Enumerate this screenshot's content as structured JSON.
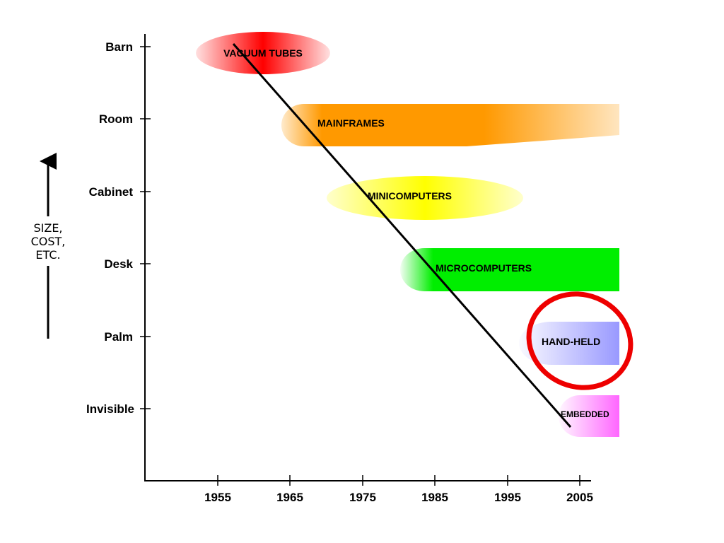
{
  "y_axis": {
    "categories": [
      "Barn",
      "Room",
      "Cabinet",
      "Desk",
      "Palm",
      "Invisible"
    ],
    "note_lines": [
      "SIZE,",
      "COST,",
      "ETC."
    ]
  },
  "x_axis": {
    "ticks": [
      "1955",
      "1965",
      "1975",
      "1985",
      "1995",
      "2005"
    ]
  },
  "bands": [
    {
      "label": "VACUUM TUBES",
      "level": "Barn",
      "color": "#ff0000"
    },
    {
      "label": "MAINFRAMES",
      "level": "Room",
      "color": "#ff9900"
    },
    {
      "label": "MINICOMPUTERS",
      "level": "Cabinet",
      "color": "#ffff00"
    },
    {
      "label": "MICROCOMPUTERS",
      "level": "Desk",
      "color": "#00ee00"
    },
    {
      "label": "HAND-HELD",
      "level": "Palm",
      "color": "#9999ff"
    },
    {
      "label": "EMBEDDED",
      "level": "Invisible",
      "color": "#ff66ff"
    }
  ],
  "highlight": {
    "target": "HAND-HELD",
    "color": "#ee0000"
  },
  "trend_line": {
    "from_year": 1958,
    "from_level": "Barn",
    "to_year": 2004,
    "to_level": "Invisible"
  }
}
